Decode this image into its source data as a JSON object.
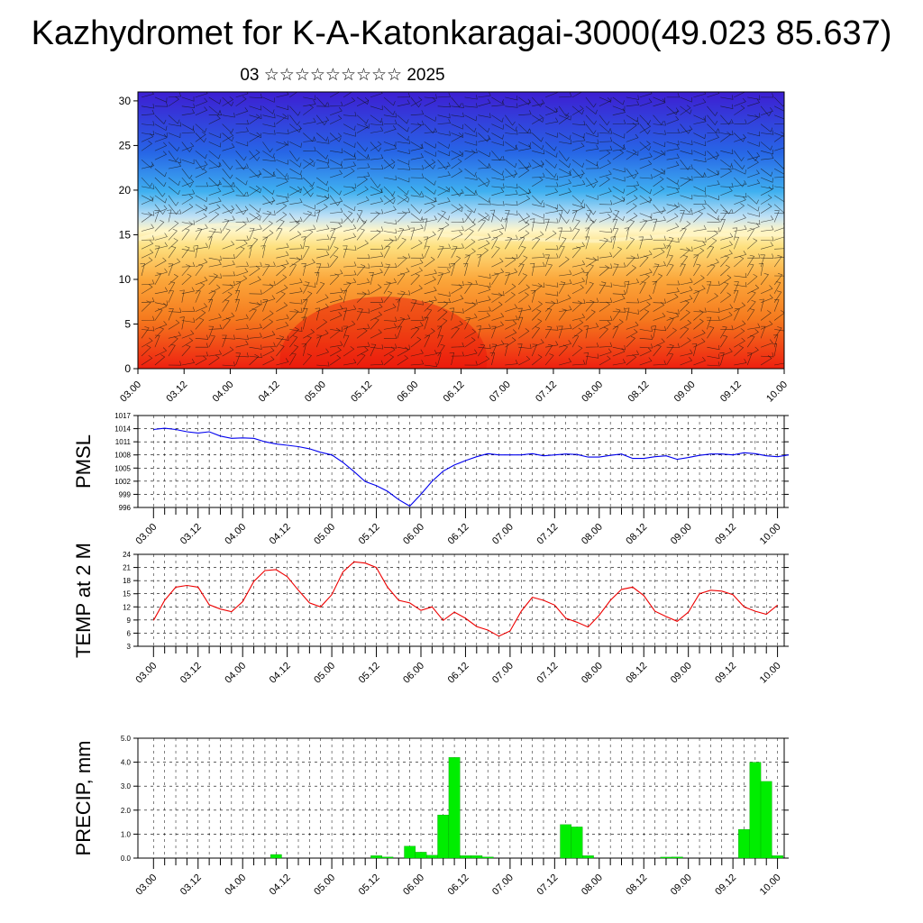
{
  "title": "Kazhydromet for K-A-Katonkaragai-3000(49.023 85.637)",
  "subtitle": "03 ☆☆☆☆☆☆☆☆☆ 2025",
  "colors": {
    "pmsl": "#0000ee",
    "temp": "#ee0000",
    "precip": "#00ee00",
    "precip_edge": "#008800"
  },
  "chart_data": [
    {
      "type": "heatmap",
      "title": "",
      "x_ticks": [
        "03.00",
        "03.12",
        "04.00",
        "04.12",
        "05.00",
        "05.12",
        "06.00",
        "06.12",
        "07.00",
        "07.12",
        "08.00",
        "08.12",
        "09.00",
        "09.12",
        "10.00"
      ],
      "y_ticks": [
        "0",
        "5",
        "10",
        "15",
        "20",
        "25",
        "30"
      ],
      "ylim": [
        0,
        31
      ],
      "freezing_level": [
        14.5,
        15.2,
        15.8,
        16.0,
        16.2,
        16.0,
        15.8,
        15.5,
        15.3,
        15.6,
        15.4,
        15.2,
        15.0,
        15.0,
        14.8,
        14.6,
        14.5,
        14.5,
        14.4,
        14.3,
        14.3,
        14.5,
        14.7,
        14.9,
        15.0,
        15.0,
        15.0,
        15.0,
        15.0
      ],
      "colormap": "blue-white-yellow-red",
      "overlay": "wind barbs"
    },
    {
      "type": "line",
      "ylabel": "PMSL",
      "x_ticks": [
        "03.00",
        "03.12",
        "04.00",
        "04.12",
        "05.00",
        "05.12",
        "06.00",
        "06.12",
        "07.00",
        "07.12",
        "08.00",
        "08.12",
        "09.00",
        "09.12",
        "10.00"
      ],
      "y_ticks": [
        "996",
        "999",
        "1002",
        "1005",
        "1008",
        "1011",
        "1014",
        "1017"
      ],
      "ylim": [
        996,
        1017
      ],
      "series": [
        {
          "values": [
            1013.8,
            1014.1,
            1013.8,
            1013.3,
            1013.0,
            1013.3,
            1012.3,
            1011.8,
            1011.9,
            1011.8,
            1011.0,
            1010.5,
            1010.2,
            1009.9,
            1009.4,
            1008.6,
            1008.0,
            1006.3,
            1004.2,
            1001.9,
            1001.0,
            999.7,
            997.8,
            996.3,
            999.0,
            1002.0,
            1004.3,
            1005.7,
            1006.7,
            1007.6,
            1008.3,
            1008.0,
            1008.0,
            1008.0,
            1008.3,
            1007.8,
            1008.0,
            1008.2,
            1008.1,
            1007.5,
            1007.5,
            1007.9,
            1008.2,
            1007.2,
            1007.2,
            1007.6,
            1007.8,
            1007.0,
            1007.4,
            1007.9,
            1008.2,
            1008.2,
            1008.0,
            1008.5,
            1008.3,
            1007.8,
            1007.6,
            1008.0
          ]
        }
      ]
    },
    {
      "type": "line",
      "ylabel": "TEMP at 2 M",
      "x_ticks": [
        "03.00",
        "03.12",
        "04.00",
        "04.12",
        "05.00",
        "05.12",
        "06.00",
        "06.12",
        "07.00",
        "07.12",
        "08.00",
        "08.12",
        "09.00",
        "09.12",
        "10.00"
      ],
      "y_ticks": [
        "3",
        "6",
        "9",
        "12",
        "15",
        "18",
        "21",
        "24"
      ],
      "ylim": [
        3,
        24
      ],
      "series": [
        {
          "values": [
            8.9,
            13.5,
            16.5,
            16.9,
            16.5,
            12.5,
            11.5,
            10.9,
            13.2,
            17.8,
            20.3,
            20.5,
            18.9,
            15.8,
            12.9,
            12.0,
            14.8,
            20.0,
            22.3,
            22.0,
            21.0,
            16.5,
            13.5,
            12.9,
            11.2,
            12.0,
            8.9,
            10.8,
            9.4,
            7.5,
            6.7,
            5.3,
            6.5,
            11.0,
            14.2,
            13.5,
            12.4,
            9.4,
            8.5,
            7.4,
            10.1,
            13.5,
            16.0,
            16.5,
            14.6,
            11.0,
            9.8,
            8.7,
            10.8,
            15.0,
            15.8,
            15.6,
            14.8,
            12.0,
            11.0,
            10.3,
            12.4
          ]
        }
      ]
    },
    {
      "type": "bar",
      "ylabel": "PRECIP, mm",
      "x_ticks": [
        "03.00",
        "03.12",
        "04.00",
        "04.12",
        "05.00",
        "05.12",
        "06.00",
        "06.12",
        "07.00",
        "07.12",
        "08.00",
        "08.12",
        "09.00",
        "09.12",
        "10.00"
      ],
      "y_ticks": [
        "0.0",
        "1.0",
        "2.0",
        "3.0",
        "4.0",
        "5.0"
      ],
      "ylim": [
        0,
        5
      ],
      "series": [
        {
          "values": [
            0,
            0,
            0,
            0,
            0,
            0,
            0,
            0,
            0,
            0,
            0,
            0.15,
            0,
            0,
            0,
            0,
            0,
            0,
            0,
            0,
            0.1,
            0.05,
            0,
            0.5,
            0.25,
            0.12,
            1.8,
            4.2,
            0.1,
            0.1,
            0.05,
            0,
            0,
            0,
            0,
            0,
            0,
            1.4,
            1.3,
            0.1,
            0,
            0,
            0,
            0,
            0,
            0,
            0.04,
            0.05,
            0,
            0,
            0,
            0,
            0,
            1.2,
            4.0,
            3.2,
            0.1
          ]
        }
      ]
    }
  ]
}
